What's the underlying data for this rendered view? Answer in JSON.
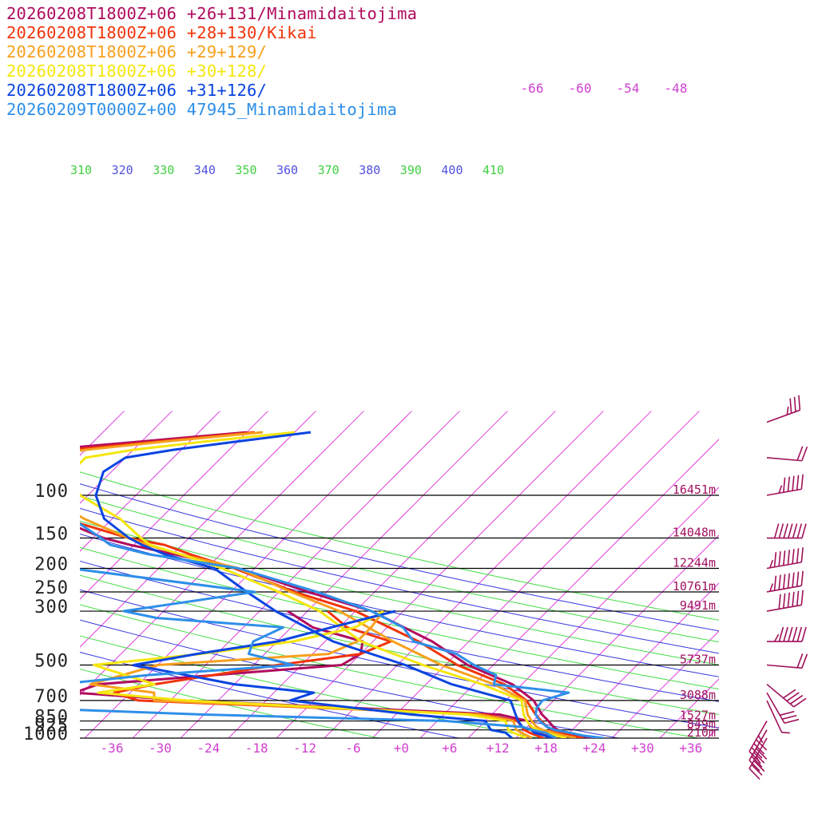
{
  "legend": [
    {
      "text": "20260208T1800Z+06 +26+131/Minamidaitojima",
      "color": "#b00b5e"
    },
    {
      "text": "20260208T1800Z+06 +28+130/Kikai",
      "color": "#f0340c"
    },
    {
      "text": "20260208T1800Z+06 +29+129/",
      "color": "#f7a01e"
    },
    {
      "text": "20260208T1800Z+06 +30+128/",
      "color": "#f5e60f"
    },
    {
      "text": "20260208T1800Z+06 +31+126/",
      "color": "#0b45e0"
    },
    {
      "text": "20260209T0000Z+00 47945_Minamidaitojima",
      "color": "#2e8fe8"
    }
  ],
  "colors": {
    "isotherm": "#e040e0",
    "dry_adiabat_a": "#3a3ae0",
    "dry_adiabat_b": "#44dd44",
    "isobar": "#000000",
    "wind_barb": "#a0105a",
    "theta_label_a": "#5050e0",
    "theta_label_b": "#40d040"
  },
  "chart_data": {
    "type": "line",
    "title": "",
    "xlabel": "",
    "ylabel": "",
    "y_scale": "log-pressure",
    "ylim": [
      1000,
      100
    ],
    "xlim": [
      -40,
      40
    ],
    "pressure_levels": [
      {
        "p": 100,
        "label": "100",
        "height": "16451m"
      },
      {
        "p": 150,
        "label": "150",
        "height": "14048m"
      },
      {
        "p": 200,
        "label": "200",
        "height": "12244m"
      },
      {
        "p": 250,
        "label": "250",
        "height": "10761m"
      },
      {
        "p": 300,
        "label": "300",
        "height": "9491m"
      },
      {
        "p": 500,
        "label": "500",
        "height": "5737m"
      },
      {
        "p": 700,
        "label": "700",
        "height": "3088m"
      },
      {
        "p": 850,
        "label": "850",
        "height": "1527m"
      },
      {
        "p": 925,
        "label": "925",
        "height": "849m"
      },
      {
        "p": 1000,
        "label": "1000",
        "height": "210m"
      }
    ],
    "x_ticks": [
      "-36",
      "-30",
      "-24",
      "-18",
      "-12",
      "-6",
      "+0",
      "+6",
      "+12",
      "+18",
      "+24",
      "+30",
      "+36"
    ],
    "upper_ticks": [
      "-66",
      "-60",
      "-54",
      "-48"
    ],
    "theta_labels": [
      {
        "v": "310",
        "c": "b"
      },
      {
        "v": "320",
        "c": "a"
      },
      {
        "v": "330",
        "c": "b"
      },
      {
        "v": "340",
        "c": "a"
      },
      {
        "v": "350",
        "c": "b"
      },
      {
        "v": "360",
        "c": "a"
      },
      {
        "v": "370",
        "c": "b"
      },
      {
        "v": "380",
        "c": "a"
      },
      {
        "v": "390",
        "c": "b"
      },
      {
        "v": "400",
        "c": "a"
      },
      {
        "v": "410",
        "c": "b"
      }
    ],
    "series": [
      {
        "name": "20260208T1800Z+06 +26+131/Minamidaitojima",
        "color": "#b00b5e",
        "temp": [
          [
            1000,
            23.7
          ],
          [
            975,
            21.5
          ],
          [
            950,
            19.8
          ],
          [
            925,
            18.2
          ],
          [
            900,
            17.3
          ],
          [
            850,
            15.9
          ],
          [
            800,
            14.3
          ],
          [
            700,
            11.5
          ],
          [
            600,
            6.8
          ],
          [
            500,
            -1.2
          ],
          [
            400,
            -8.6
          ],
          [
            300,
            -20.0
          ],
          [
            250,
            -30.3
          ],
          [
            200,
            -42.0
          ],
          [
            175,
            -51.8
          ],
          [
            160,
            -58.5
          ],
          [
            150,
            -62.7
          ],
          [
            125,
            -70.9
          ],
          [
            100,
            -78.6
          ],
          [
            80,
            -85.0
          ],
          [
            70,
            -86.0
          ],
          [
            65,
            -81.0
          ],
          [
            60,
            -70.0
          ],
          [
            55,
            -58.0
          ]
        ],
        "dew": [
          [
            1000,
            18.7
          ],
          [
            950,
            16.0
          ],
          [
            925,
            15.0
          ],
          [
            850,
            13.3
          ],
          [
            800,
            9.0
          ],
          [
            700,
            -32.0
          ],
          [
            650,
            -47.0
          ],
          [
            600,
            -45.0
          ],
          [
            500,
            -17.0
          ],
          [
            450,
            -16.0
          ],
          [
            400,
            -17.3
          ],
          [
            350,
            -25.3
          ],
          [
            300,
            -30.5
          ]
        ]
      },
      {
        "name": "20260208T1800Z+06 +28+130/Kikai",
        "color": "#f0340c",
        "temp": [
          [
            1000,
            22.4
          ],
          [
            975,
            20.5
          ],
          [
            950,
            18.8
          ],
          [
            925,
            17.4
          ],
          [
            900,
            16.5
          ],
          [
            850,
            15.0
          ],
          [
            800,
            13.5
          ],
          [
            700,
            10.6
          ],
          [
            600,
            5.8
          ],
          [
            500,
            -2.5
          ],
          [
            400,
            -10.3
          ],
          [
            300,
            -22.0
          ],
          [
            250,
            -32.0
          ],
          [
            200,
            -42.5
          ],
          [
            175,
            -49.8
          ],
          [
            160,
            -54.2
          ],
          [
            150,
            -59.6
          ],
          [
            125,
            -70.0
          ],
          [
            100,
            -78.5
          ],
          [
            80,
            -84.0
          ],
          [
            70,
            -85.0
          ],
          [
            65,
            -78.0
          ],
          [
            60,
            -68.0
          ],
          [
            55,
            -57.0
          ]
        ],
        "dew": [
          [
            1000,
            17.4
          ],
          [
            950,
            15.0
          ],
          [
            925,
            14.0
          ],
          [
            850,
            12.0
          ],
          [
            800,
            7.0
          ],
          [
            700,
            -38.0
          ],
          [
            650,
            -42.0
          ],
          [
            600,
            -38.0
          ],
          [
            500,
            -25.0
          ],
          [
            450,
            -16.0
          ],
          [
            400,
            -13.8
          ],
          [
            350,
            -21.0
          ],
          [
            300,
            -25.5
          ]
        ]
      },
      {
        "name": "20260208T1800Z+06 +29+129/",
        "color": "#f7a01e",
        "temp": [
          [
            1000,
            21.5
          ],
          [
            975,
            19.6
          ],
          [
            950,
            18.0
          ],
          [
            925,
            16.3
          ],
          [
            900,
            15.2
          ],
          [
            850,
            13.8
          ],
          [
            800,
            12.5
          ],
          [
            700,
            10.4
          ],
          [
            600,
            4.5
          ],
          [
            500,
            -4.5
          ],
          [
            400,
            -13.5
          ],
          [
            300,
            -24.0
          ],
          [
            250,
            -32.5
          ],
          [
            200,
            -42.0
          ],
          [
            175,
            -51.0
          ],
          [
            160,
            -56.3
          ],
          [
            150,
            -59.6
          ],
          [
            125,
            -67.5
          ],
          [
            100,
            -75.5
          ],
          [
            80,
            -80.0
          ],
          [
            70,
            -82.0
          ],
          [
            65,
            -76.0
          ],
          [
            60,
            -67.0
          ],
          [
            55,
            -56.0
          ]
        ],
        "dew": [
          [
            1000,
            16.0
          ],
          [
            950,
            14.0
          ],
          [
            925,
            13.0
          ],
          [
            850,
            11.5
          ],
          [
            800,
            6.5
          ],
          [
            700,
            -36.0
          ],
          [
            650,
            -37.0
          ],
          [
            600,
            -46.0
          ],
          [
            500,
            -40.0
          ],
          [
            450,
            -20.0
          ],
          [
            400,
            -18.0
          ],
          [
            350,
            -18.0
          ],
          [
            300,
            -18.5
          ]
        ]
      },
      {
        "name": "20260208T1800Z+06 +30+128/",
        "color": "#f5e60f",
        "temp": [
          [
            1000,
            20.3
          ],
          [
            975,
            18.6
          ],
          [
            950,
            16.9
          ],
          [
            925,
            15.7
          ],
          [
            900,
            14.6
          ],
          [
            850,
            13.2
          ],
          [
            800,
            12.0
          ],
          [
            700,
            10.0
          ],
          [
            600,
            3.0
          ],
          [
            500,
            -6.8
          ],
          [
            400,
            -17.5
          ],
          [
            300,
            -26.5
          ],
          [
            250,
            -34.0
          ],
          [
            200,
            -44.0
          ],
          [
            175,
            -51.0
          ],
          [
            160,
            -56.0
          ],
          [
            150,
            -58.0
          ],
          [
            125,
            -63.0
          ],
          [
            100,
            -71.0
          ],
          [
            80,
            -75.0
          ],
          [
            70,
            -75.0
          ],
          [
            65,
            -70.0
          ],
          [
            60,
            -62.0
          ],
          [
            55,
            -52.0
          ]
        ],
        "dew": [
          [
            1000,
            15.3
          ],
          [
            950,
            13.0
          ],
          [
            925,
            12.0
          ],
          [
            850,
            10.5
          ],
          [
            800,
            5.0
          ],
          [
            700,
            -32.0
          ],
          [
            650,
            -44.0
          ],
          [
            600,
            -38.0
          ],
          [
            500,
            -48.0
          ],
          [
            450,
            -36.0
          ],
          [
            400,
            -26.0
          ],
          [
            350,
            -20.0
          ],
          [
            300,
            -18.5
          ]
        ]
      },
      {
        "name": "20260208T1800Z+06 +31+126/",
        "color": "#0b45e0",
        "temp": [
          [
            1000,
            18.5
          ],
          [
            975,
            17.2
          ],
          [
            950,
            15.6
          ],
          [
            925,
            14.9
          ],
          [
            900,
            13.4
          ],
          [
            850,
            12.1
          ],
          [
            800,
            11.0
          ],
          [
            700,
            8.6
          ],
          [
            600,
            -0.8
          ],
          [
            500,
            -9.0
          ],
          [
            400,
            -21.0
          ],
          [
            300,
            -32.0
          ],
          [
            250,
            -38.0
          ],
          [
            200,
            -45.0
          ],
          [
            175,
            -53.0
          ],
          [
            160,
            -57.0
          ],
          [
            150,
            -59.5
          ],
          [
            125,
            -65.0
          ],
          [
            100,
            -69.0
          ],
          [
            80,
            -71.0
          ],
          [
            70,
            -70.0
          ],
          [
            65,
            -65.0
          ],
          [
            60,
            -58.0
          ],
          [
            55,
            -50.0
          ]
        ],
        "dew": [
          [
            1000,
            13.5
          ],
          [
            950,
            12.0
          ],
          [
            925,
            9.8
          ],
          [
            850,
            8.0
          ],
          [
            800,
            -2.0
          ],
          [
            700,
            -19.0
          ],
          [
            650,
            -17.0
          ],
          [
            600,
            -28.0
          ],
          [
            500,
            -43.0
          ],
          [
            450,
            -36.5
          ],
          [
            400,
            -28.0
          ],
          [
            350,
            -23.0
          ],
          [
            300,
            -17.0
          ]
        ]
      },
      {
        "name": "20260209T0000Z+00 47945_Minamidaitojima",
        "color": "#2e8fe8",
        "temp": [
          [
            1000,
            25.0
          ],
          [
            975,
            22.0
          ],
          [
            950,
            20.0
          ],
          [
            925,
            17.8
          ],
          [
            900,
            16.5
          ],
          [
            850,
            14.8
          ],
          [
            800,
            13.5
          ],
          [
            750,
            12.8
          ],
          [
            700,
            12.6
          ],
          [
            650,
            14.9
          ],
          [
            600,
            4.5
          ],
          [
            550,
            3.6
          ],
          [
            500,
            -0.4
          ],
          [
            450,
            -4.0
          ],
          [
            400,
            -10.9
          ],
          [
            350,
            -14.0
          ],
          [
            300,
            -20.0
          ],
          [
            250,
            -29.2
          ],
          [
            200,
            -42.0
          ],
          [
            175,
            -55.0
          ],
          [
            160,
            -61.0
          ],
          [
            150,
            -63.0
          ],
          [
            125,
            -69.0
          ],
          [
            100,
            -74.0
          ]
        ],
        "dew": [
          [
            1000,
            19.0
          ],
          [
            975,
            18.0
          ],
          [
            950,
            17.0
          ],
          [
            925,
            15.0
          ],
          [
            900,
            13.5
          ],
          [
            850,
            3.0
          ],
          [
            800,
            -28.0
          ],
          [
            750,
            -52.0
          ],
          [
            700,
            -62.0
          ],
          [
            650,
            -58.0
          ],
          [
            600,
            -50.0
          ],
          [
            550,
            -40.0
          ],
          [
            500,
            -23.0
          ],
          [
            450,
            -30.0
          ],
          [
            400,
            -31.0
          ],
          [
            350,
            -29.0
          ],
          [
            320,
            -46.0
          ],
          [
            300,
            -51.0
          ],
          [
            250,
            -37.0
          ],
          [
            200,
            -63.0
          ],
          [
            150,
            -72.0
          ],
          [
            100,
            -80.0
          ]
        ]
      }
    ],
    "wind_barbs": [
      {
        "p": 50,
        "dir": 250,
        "spd": 35
      },
      {
        "p": 70,
        "dir": 275,
        "spd": 20
      },
      {
        "p": 100,
        "dir": 260,
        "spd": 55
      },
      {
        "p": 150,
        "dir": 270,
        "spd": 70
      },
      {
        "p": 200,
        "dir": 260,
        "spd": 75
      },
      {
        "p": 250,
        "dir": 260,
        "spd": 75
      },
      {
        "p": 300,
        "dir": 260,
        "spd": 60
      },
      {
        "p": 400,
        "dir": 270,
        "spd": 65
      },
      {
        "p": 500,
        "dir": 275,
        "spd": 20
      },
      {
        "p": 600,
        "dir": 310,
        "spd": 40
      },
      {
        "p": 650,
        "dir": 330,
        "spd": 30
      },
      {
        "p": 700,
        "dir": 335,
        "spd": 5
      },
      {
        "p": 850,
        "dir": 30,
        "spd": 45
      },
      {
        "p": 925,
        "dir": 30,
        "spd": 40
      },
      {
        "p": 1000,
        "dir": 30,
        "spd": 35
      }
    ]
  }
}
